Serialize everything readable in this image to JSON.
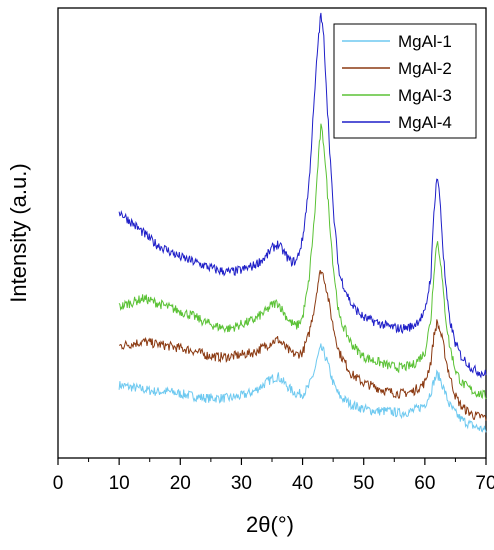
{
  "chart_data": {
    "type": "line",
    "title": "",
    "xlabel": "2θ(°)",
    "ylabel": "Intensity (a.u.)",
    "xlim": [
      0,
      70
    ],
    "x_ticks": [
      "0",
      "10",
      "20",
      "30",
      "40",
      "50",
      "60",
      "70"
    ],
    "y_tick_labels": false,
    "grid": false,
    "legend": "top-right",
    "x": [
      10,
      12,
      14,
      16,
      18,
      20,
      22,
      24,
      26,
      28,
      30,
      32,
      34,
      35,
      36,
      37,
      38,
      39,
      40,
      41,
      42,
      42.5,
      43,
      43.5,
      44,
      45,
      46,
      48,
      50,
      52,
      54,
      56,
      58,
      60,
      61,
      61.5,
      62,
      62.5,
      63,
      63.5,
      64,
      65,
      66,
      68,
      70
    ],
    "series": [
      {
        "name": "MgAl-1",
        "color": "#6ec9f0",
        "values": [
          0.145,
          0.14,
          0.135,
          0.13,
          0.13,
          0.125,
          0.12,
          0.115,
          0.115,
          0.115,
          0.12,
          0.13,
          0.15,
          0.16,
          0.165,
          0.15,
          0.135,
          0.125,
          0.125,
          0.14,
          0.18,
          0.21,
          0.23,
          0.22,
          0.2,
          0.15,
          0.12,
          0.1,
          0.09,
          0.085,
          0.085,
          0.08,
          0.085,
          0.1,
          0.13,
          0.155,
          0.17,
          0.16,
          0.14,
          0.12,
          0.1,
          0.08,
          0.065,
          0.05,
          0.04
        ]
      },
      {
        "name": "MgAl-2",
        "color": "#8b3a12",
        "values": [
          0.235,
          0.24,
          0.245,
          0.24,
          0.235,
          0.23,
          0.225,
          0.215,
          0.21,
          0.21,
          0.215,
          0.22,
          0.235,
          0.245,
          0.25,
          0.235,
          0.22,
          0.215,
          0.22,
          0.26,
          0.33,
          0.38,
          0.41,
          0.395,
          0.36,
          0.28,
          0.22,
          0.17,
          0.15,
          0.14,
          0.13,
          0.125,
          0.13,
          0.15,
          0.2,
          0.26,
          0.29,
          0.27,
          0.24,
          0.2,
          0.17,
          0.12,
          0.095,
          0.075,
          0.07
        ]
      },
      {
        "name": "MgAl-3",
        "color": "#5bc236",
        "values": [
          0.325,
          0.335,
          0.345,
          0.335,
          0.325,
          0.315,
          0.305,
          0.29,
          0.28,
          0.275,
          0.285,
          0.295,
          0.315,
          0.33,
          0.335,
          0.31,
          0.29,
          0.28,
          0.3,
          0.38,
          0.54,
          0.65,
          0.74,
          0.7,
          0.6,
          0.42,
          0.3,
          0.24,
          0.21,
          0.2,
          0.19,
          0.185,
          0.19,
          0.22,
          0.3,
          0.41,
          0.48,
          0.44,
          0.36,
          0.29,
          0.24,
          0.18,
          0.15,
          0.13,
          0.12
        ]
      },
      {
        "name": "MgAl-4",
        "color": "#1f1fc8",
        "values": [
          0.545,
          0.52,
          0.495,
          0.47,
          0.455,
          0.44,
          0.43,
          0.42,
          0.41,
          0.405,
          0.41,
          0.42,
          0.44,
          0.46,
          0.47,
          0.45,
          0.43,
          0.43,
          0.48,
          0.6,
          0.82,
          0.93,
          1.0,
          0.94,
          0.8,
          0.55,
          0.4,
          0.33,
          0.3,
          0.29,
          0.28,
          0.275,
          0.28,
          0.31,
          0.4,
          0.55,
          0.63,
          0.57,
          0.45,
          0.36,
          0.3,
          0.24,
          0.21,
          0.18,
          0.17
        ]
      }
    ]
  }
}
